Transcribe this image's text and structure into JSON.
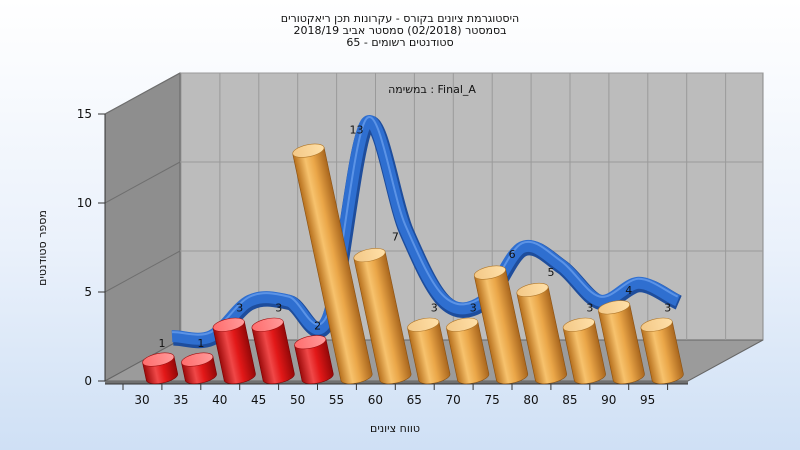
{
  "chart_data": {
    "type": "bar",
    "title_lines": [
      "היסטוגרמת ציונים בקורס - עקרונות תכן ריאקטורים",
      "בסמסטר  (02/2018)  סמסטר אביב 2018/19",
      "סטודנטים רשומים - 65"
    ],
    "annotation": "במשימה : Final_A",
    "xlabel": "טווח ציונים",
    "ylabel": "מספר סטודנטים",
    "ylim": [
      0,
      15
    ],
    "yticks": [
      "0",
      "5",
      "10",
      "15"
    ],
    "x_tick_labels": [
      "30",
      "35",
      "40",
      "45",
      "50",
      "55",
      "60",
      "65",
      "70",
      "75",
      "80",
      "85",
      "90",
      "95"
    ],
    "categories": [
      "30",
      "35",
      "40",
      "45",
      "50",
      "55",
      "60",
      "65",
      "70",
      "75",
      "80",
      "85",
      "90",
      "95"
    ],
    "values": [
      1,
      1,
      3,
      3,
      2,
      13,
      7,
      3,
      3,
      6,
      5,
      3,
      4,
      3
    ],
    "data_labels": [
      "1",
      "1",
      "3",
      "3",
      "2",
      "13",
      "7",
      "3",
      "3",
      "6",
      "5",
      "3",
      "4",
      "3"
    ],
    "fail_threshold": 55,
    "colors": {
      "fail": "#e41212",
      "pass": "#e8a445",
      "curve": "#2f6fd0",
      "wall": "#bdbdbd",
      "side_wall": "#8f8f8f",
      "floor": "#9a9a9a"
    },
    "grid": true
  }
}
